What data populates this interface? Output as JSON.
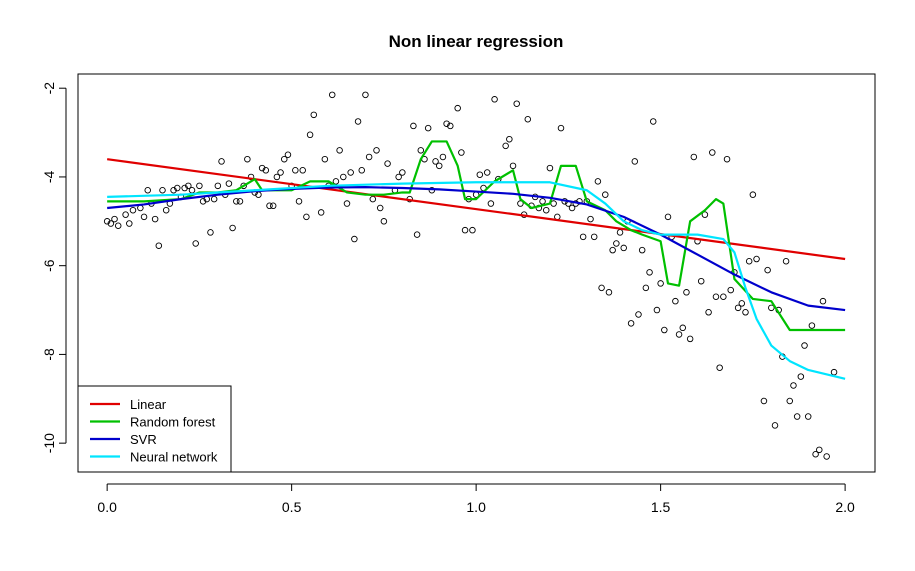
{
  "chart_data": {
    "type": "scatter",
    "title": "Non linear regression",
    "xlim": [
      -0.079,
      2.081
    ],
    "ylim": [
      -10.65,
      -1.68
    ],
    "xticks": [
      {
        "value": 0,
        "label": "0.0"
      },
      {
        "value": 0.5,
        "label": "0.5"
      },
      {
        "value": 1,
        "label": "1.0"
      },
      {
        "value": 1.5,
        "label": "1.5"
      },
      {
        "value": 2,
        "label": "2.0"
      }
    ],
    "yticks": [
      -2,
      -4,
      -6,
      -8,
      -10
    ],
    "legend": "bottom-left",
    "points": {
      "x": [
        0,
        0.01,
        0.02,
        0.03,
        0.05,
        0.06,
        0.07,
        0.09,
        0.1,
        0.11,
        0.12,
        0.13,
        0.14,
        0.15,
        0.16,
        0.17,
        0.18,
        0.19,
        0.2,
        0.21,
        0.22,
        0.23,
        0.24,
        0.25,
        0.26,
        0.27,
        0.28,
        0.29,
        0.3,
        0.31,
        0.32,
        0.33,
        0.34,
        0.35,
        0.36,
        0.37,
        0.38,
        0.39,
        0.4,
        0.41,
        0.42,
        0.43,
        0.44,
        0.45,
        0.46,
        0.47,
        0.48,
        0.49,
        0.5,
        0.51,
        0.52,
        0.53,
        0.54,
        0.55,
        0.56,
        0.58,
        0.59,
        0.6,
        0.61,
        0.62,
        0.63,
        0.64,
        0.65,
        0.66,
        0.67,
        0.68,
        0.69,
        0.7,
        0.71,
        0.72,
        0.73,
        0.74,
        0.75,
        0.76,
        0.78,
        0.79,
        0.8,
        0.82,
        0.83,
        0.84,
        0.85,
        0.86,
        0.87,
        0.88,
        0.89,
        0.9,
        0.91,
        0.92,
        0.93,
        0.95,
        0.96,
        0.97,
        0.98,
        0.99,
        1.0,
        1.01,
        1.02,
        1.03,
        1.04,
        1.05,
        1.06,
        1.08,
        1.09,
        1.1,
        1.11,
        1.12,
        1.13,
        1.14,
        1.15,
        1.16,
        1.17,
        1.18,
        1.19,
        1.2,
        1.21,
        1.22,
        1.23,
        1.24,
        1.25,
        1.26,
        1.27,
        1.28,
        1.29,
        1.3,
        1.31,
        1.32,
        1.33,
        1.34,
        1.35,
        1.36,
        1.37,
        1.38,
        1.39,
        1.4,
        1.41,
        1.42,
        1.43,
        1.44,
        1.45,
        1.46,
        1.47,
        1.48,
        1.49,
        1.5,
        1.51,
        1.52,
        1.53,
        1.54,
        1.55,
        1.56,
        1.57,
        1.58,
        1.59,
        1.6,
        1.61,
        1.62,
        1.63,
        1.64,
        1.65,
        1.66,
        1.67,
        1.68,
        1.69,
        1.7,
        1.71,
        1.72,
        1.73,
        1.74,
        1.75,
        1.76,
        1.78,
        1.79,
        1.8,
        1.81,
        1.82,
        1.83,
        1.84,
        1.85,
        1.86,
        1.87,
        1.88,
        1.89,
        1.9,
        1.91,
        1.92,
        1.93,
        1.94,
        1.95,
        1.97
      ],
      "y": [
        -5.0,
        -5.05,
        -4.95,
        -5.1,
        -4.85,
        -5.05,
        -4.75,
        -4.7,
        -4.9,
        -4.3,
        -4.6,
        -4.95,
        -5.55,
        -4.3,
        -4.75,
        -4.6,
        -4.3,
        -4.25,
        -4.45,
        -4.25,
        -4.2,
        -4.3,
        -5.5,
        -4.2,
        -4.55,
        -4.5,
        -5.25,
        -4.5,
        -4.2,
        -3.65,
        -4.4,
        -4.15,
        -5.15,
        -4.55,
        -4.55,
        -4.2,
        -3.6,
        -4.0,
        -4.35,
        -4.4,
        -3.8,
        -3.85,
        -4.65,
        -4.65,
        -4.0,
        -3.9,
        -3.6,
        -3.5,
        -4.2,
        -3.85,
        -4.55,
        -3.85,
        -4.9,
        -3.05,
        -2.6,
        -4.8,
        -3.6,
        -4.2,
        -2.15,
        -4.1,
        -3.4,
        -4.0,
        -4.6,
        -3.9,
        -5.4,
        -2.75,
        -3.85,
        -2.15,
        -3.55,
        -4.5,
        -3.4,
        -4.7,
        -5.0,
        -3.7,
        -4.3,
        -4.0,
        -3.9,
        -4.5,
        -2.85,
        -5.3,
        -3.4,
        -3.6,
        -2.9,
        -4.3,
        -3.65,
        -3.75,
        -3.55,
        -2.8,
        -2.85,
        -2.45,
        -3.45,
        -5.2,
        -4.5,
        -5.2,
        -4.4,
        -3.95,
        -4.25,
        -3.9,
        -4.6,
        -2.25,
        -4.05,
        -3.3,
        -3.15,
        -3.75,
        -2.35,
        -4.6,
        -4.85,
        -2.7,
        -4.65,
        -4.45,
        -4.7,
        -4.55,
        -4.75,
        -3.8,
        -4.6,
        -4.9,
        -2.9,
        -4.55,
        -4.6,
        -4.7,
        -4.6,
        -4.55,
        -5.35,
        -4.55,
        -4.95,
        -5.35,
        -4.1,
        -6.5,
        -4.4,
        -6.6,
        -5.65,
        -5.5,
        -5.25,
        -5.6,
        -5.0,
        -7.3,
        -3.65,
        -7.1,
        -5.65,
        -6.5,
        -6.15,
        -2.75,
        -7.0,
        -6.4,
        -7.45,
        -4.9,
        -5.35,
        -6.8,
        -7.55,
        -7.4,
        -6.6,
        -7.65,
        -3.55,
        -5.45,
        -6.35,
        -4.85,
        -7.05,
        -3.45,
        -6.7,
        -8.3,
        -6.7,
        -3.6,
        -6.55,
        -6.15,
        -6.95,
        -6.85,
        -7.05,
        -5.9,
        -4.4,
        -5.85,
        -9.05,
        -6.1,
        -6.95,
        -9.6,
        -7.0,
        -8.05,
        -5.9,
        -9.05,
        -8.7,
        -9.4,
        -8.5,
        -7.8,
        -9.4,
        -7.35,
        -10.25,
        -10.15,
        -6.8,
        -10.3,
        -8.4
      ]
    },
    "series": [
      {
        "name": "Linear",
        "color": "#e00000",
        "x": [
          0,
          2
        ],
        "values": [
          -3.6,
          -5.85
        ]
      },
      {
        "name": "Random forest",
        "color": "#00c000",
        "x": [
          0,
          0.1,
          0.2,
          0.25,
          0.3,
          0.35,
          0.4,
          0.42,
          0.5,
          0.55,
          0.6,
          0.65,
          0.7,
          0.75,
          0.8,
          0.82,
          0.85,
          0.88,
          0.92,
          0.95,
          0.97,
          1.0,
          1.05,
          1.1,
          1.12,
          1.15,
          1.2,
          1.23,
          1.27,
          1.3,
          1.35,
          1.38,
          1.42,
          1.45,
          1.5,
          1.52,
          1.55,
          1.58,
          1.62,
          1.65,
          1.67,
          1.7,
          1.75,
          1.8,
          1.85,
          1.9,
          2.0
        ],
        "values": [
          -4.55,
          -4.55,
          -4.5,
          -4.35,
          -4.35,
          -4.3,
          -4.05,
          -4.3,
          -4.3,
          -4.1,
          -4.1,
          -4.35,
          -4.4,
          -4.4,
          -4.35,
          -4.35,
          -3.6,
          -3.2,
          -3.2,
          -3.75,
          -4.5,
          -4.5,
          -4.1,
          -3.85,
          -4.5,
          -4.7,
          -4.6,
          -3.75,
          -3.75,
          -4.55,
          -4.75,
          -5.0,
          -5.2,
          -5.3,
          -5.45,
          -6.4,
          -6.45,
          -5.0,
          -4.75,
          -4.5,
          -4.6,
          -6.3,
          -6.75,
          -6.8,
          -7.45,
          -7.45,
          -7.45
        ]
      },
      {
        "name": "SVR",
        "color": "#0000cc",
        "x": [
          0,
          0.1,
          0.2,
          0.3,
          0.4,
          0.5,
          0.6,
          0.7,
          0.8,
          0.9,
          1.0,
          1.1,
          1.2,
          1.3,
          1.4,
          1.5,
          1.6,
          1.7,
          1.8,
          1.9,
          2.0
        ],
        "values": [
          -4.7,
          -4.62,
          -4.5,
          -4.4,
          -4.32,
          -4.27,
          -4.24,
          -4.23,
          -4.25,
          -4.28,
          -4.33,
          -4.38,
          -4.47,
          -4.62,
          -4.9,
          -5.3,
          -5.75,
          -6.2,
          -6.6,
          -6.9,
          -7.0
        ]
      },
      {
        "name": "Neural network",
        "color": "#00e5ff",
        "x": [
          0,
          0.2,
          0.4,
          0.6,
          0.8,
          1.0,
          1.2,
          1.3,
          1.35,
          1.4,
          1.45,
          1.5,
          1.6,
          1.67,
          1.7,
          1.73,
          1.76,
          1.8,
          1.85,
          1.9,
          2.0
        ],
        "values": [
          -4.45,
          -4.4,
          -4.3,
          -4.2,
          -4.15,
          -4.12,
          -4.12,
          -4.3,
          -4.6,
          -5.0,
          -5.2,
          -5.3,
          -5.3,
          -5.4,
          -5.7,
          -6.5,
          -7.2,
          -7.8,
          -8.15,
          -8.35,
          -8.55
        ]
      }
    ]
  }
}
